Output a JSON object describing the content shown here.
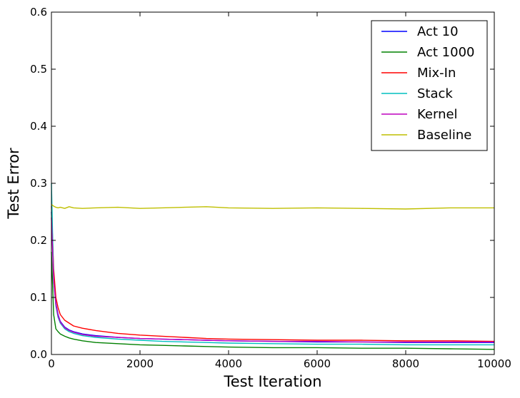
{
  "chart_data": {
    "type": "line",
    "xlabel": "Test Iteration",
    "ylabel": "Test Error",
    "xlim": [
      0,
      10000
    ],
    "ylim": [
      0,
      0.6
    ],
    "xticks": [
      0,
      2000,
      4000,
      6000,
      8000,
      10000
    ],
    "xtick_labels": [
      "0",
      "2000",
      "4000",
      "6000",
      "8000",
      "10000"
    ],
    "yticks": [
      0,
      0.1,
      0.2,
      0.3,
      0.4,
      0.5,
      0.6
    ],
    "ytick_labels": [
      "0.0",
      "0.1",
      "0.2",
      "0.3",
      "0.4",
      "0.5",
      "0.6"
    ],
    "grid": false,
    "legend_position": "top-right",
    "x": [
      0,
      50,
      100,
      150,
      200,
      300,
      400,
      500,
      700,
      1000,
      1500,
      2000,
      2500,
      3000,
      3500,
      4000,
      5000,
      6000,
      7000,
      8000,
      9000,
      10000
    ],
    "series": [
      {
        "name": "Act 10",
        "color": "#0000ff",
        "values": [
          0.25,
          0.14,
          0.09,
          0.07,
          0.058,
          0.048,
          0.043,
          0.04,
          0.036,
          0.033,
          0.03,
          0.028,
          0.027,
          0.026,
          0.025,
          0.024,
          0.023,
          0.022,
          0.022,
          0.021,
          0.021,
          0.021
        ]
      },
      {
        "name": "Act 1000",
        "color": "#008000",
        "values": [
          0.18,
          0.07,
          0.045,
          0.04,
          0.036,
          0.032,
          0.029,
          0.027,
          0.024,
          0.021,
          0.019,
          0.017,
          0.016,
          0.015,
          0.014,
          0.013,
          0.012,
          0.012,
          0.011,
          0.011,
          0.01,
          0.009
        ]
      },
      {
        "name": "Mix-In",
        "color": "#ff0000",
        "values": [
          0.26,
          0.15,
          0.1,
          0.082,
          0.07,
          0.06,
          0.055,
          0.05,
          0.046,
          0.042,
          0.037,
          0.034,
          0.032,
          0.03,
          0.028,
          0.027,
          0.026,
          0.025,
          0.025,
          0.024,
          0.024,
          0.023
        ]
      },
      {
        "name": "Stack",
        "color": "#00bfbf",
        "values": [
          0.3,
          0.13,
          0.085,
          0.065,
          0.055,
          0.045,
          0.04,
          0.037,
          0.033,
          0.03,
          0.027,
          0.025,
          0.023,
          0.022,
          0.021,
          0.02,
          0.019,
          0.018,
          0.018,
          0.017,
          0.017,
          0.017
        ]
      },
      {
        "name": "Kernel",
        "color": "#bf00bf",
        "values": [
          0.24,
          0.13,
          0.088,
          0.068,
          0.057,
          0.047,
          0.042,
          0.039,
          0.035,
          0.032,
          0.03,
          0.028,
          0.027,
          0.026,
          0.025,
          0.024,
          0.023,
          0.023,
          0.022,
          0.022,
          0.022,
          0.022
        ]
      },
      {
        "name": "Baseline",
        "color": "#bfbf00",
        "values": [
          0.263,
          0.26,
          0.258,
          0.257,
          0.258,
          0.256,
          0.259,
          0.257,
          0.256,
          0.257,
          0.258,
          0.256,
          0.257,
          0.258,
          0.259,
          0.257,
          0.256,
          0.257,
          0.256,
          0.255,
          0.257,
          0.257
        ]
      }
    ]
  }
}
